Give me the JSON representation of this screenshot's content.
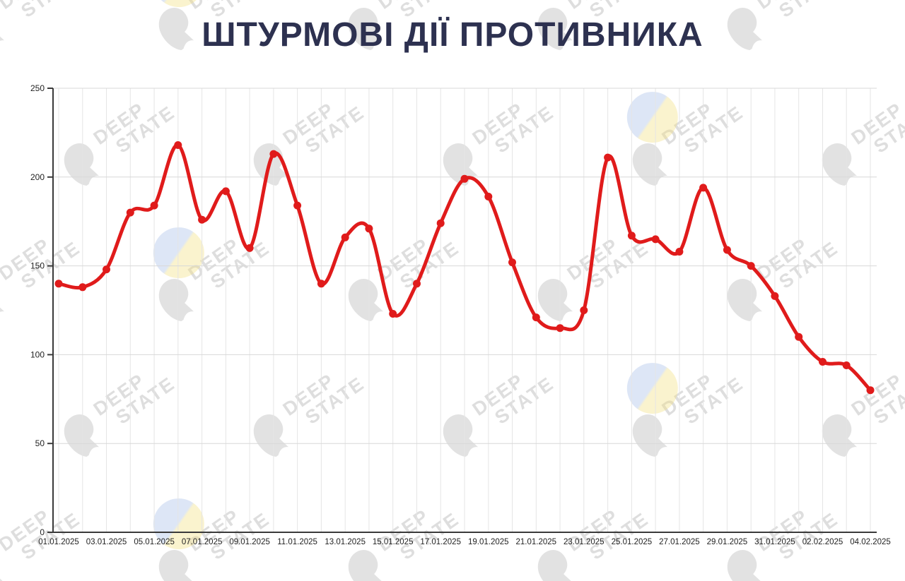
{
  "title": "ШТУРМОВІ ДІЇ ПРОТИВНИКА",
  "watermark": {
    "line1": "DEEP",
    "line2": "STATE"
  },
  "colors": {
    "accent_line": "#e01b1b",
    "title_text": "#2d3150",
    "grid_v": "#e5e5e5",
    "grid_h": "#d8d8d8",
    "axis": "#3a3a3a",
    "labels": "#222222",
    "watermark": "#dedede",
    "flag_blue": "#a5bde8",
    "flag_yellow": "#f2df7e"
  },
  "chart_data": {
    "type": "line",
    "title": "ШТУРМОВІ ДІЇ ПРОТИВНИКА",
    "x": [
      "01.01.2025",
      "02.01.2025",
      "03.01.2025",
      "04.01.2025",
      "05.01.2025",
      "06.01.2025",
      "07.01.2025",
      "08.01.2025",
      "09.01.2025",
      "10.01.2025",
      "11.01.2025",
      "12.01.2025",
      "13.01.2025",
      "14.01.2025",
      "15.01.2025",
      "16.01.2025",
      "17.01.2025",
      "18.01.2025",
      "19.01.2025",
      "20.01.2025",
      "21.01.2025",
      "22.01.2025",
      "23.01.2025",
      "24.01.2025",
      "25.01.2025",
      "26.01.2025",
      "27.01.2025",
      "28.01.2025",
      "29.01.2025",
      "30.01.2025",
      "31.01.2025",
      "01.02.2025",
      "02.02.2025",
      "03.02.2025",
      "04.02.2025"
    ],
    "values": [
      140,
      138,
      148,
      180,
      184,
      218,
      176,
      192,
      160,
      213,
      184,
      140,
      166,
      171,
      123,
      140,
      174,
      199,
      189,
      152,
      121,
      115,
      125,
      211,
      167,
      165,
      158,
      194,
      159,
      150,
      133,
      110,
      96,
      94,
      80
    ],
    "x_tick_labels": [
      "01.01.2025",
      "03.01.2025",
      "05.01.2025",
      "07.01.2025",
      "09.01.2025",
      "11.01.2025",
      "13.01.2025",
      "15.01.2025",
      "17.01.2025",
      "19.01.2025",
      "21.01.2025",
      "23.01.2025",
      "25.01.2025",
      "27.01.2025",
      "29.01.2025",
      "31.01.2025",
      "02.02.2025",
      "04.02.2025"
    ],
    "y_ticks": [
      0,
      50,
      100,
      150,
      200,
      250
    ],
    "ylim": [
      0,
      250
    ],
    "xlabel": "",
    "ylabel": "",
    "grid": true,
    "legend": false,
    "smooth": true,
    "markers": true,
    "line_color": "#e01b1b"
  }
}
